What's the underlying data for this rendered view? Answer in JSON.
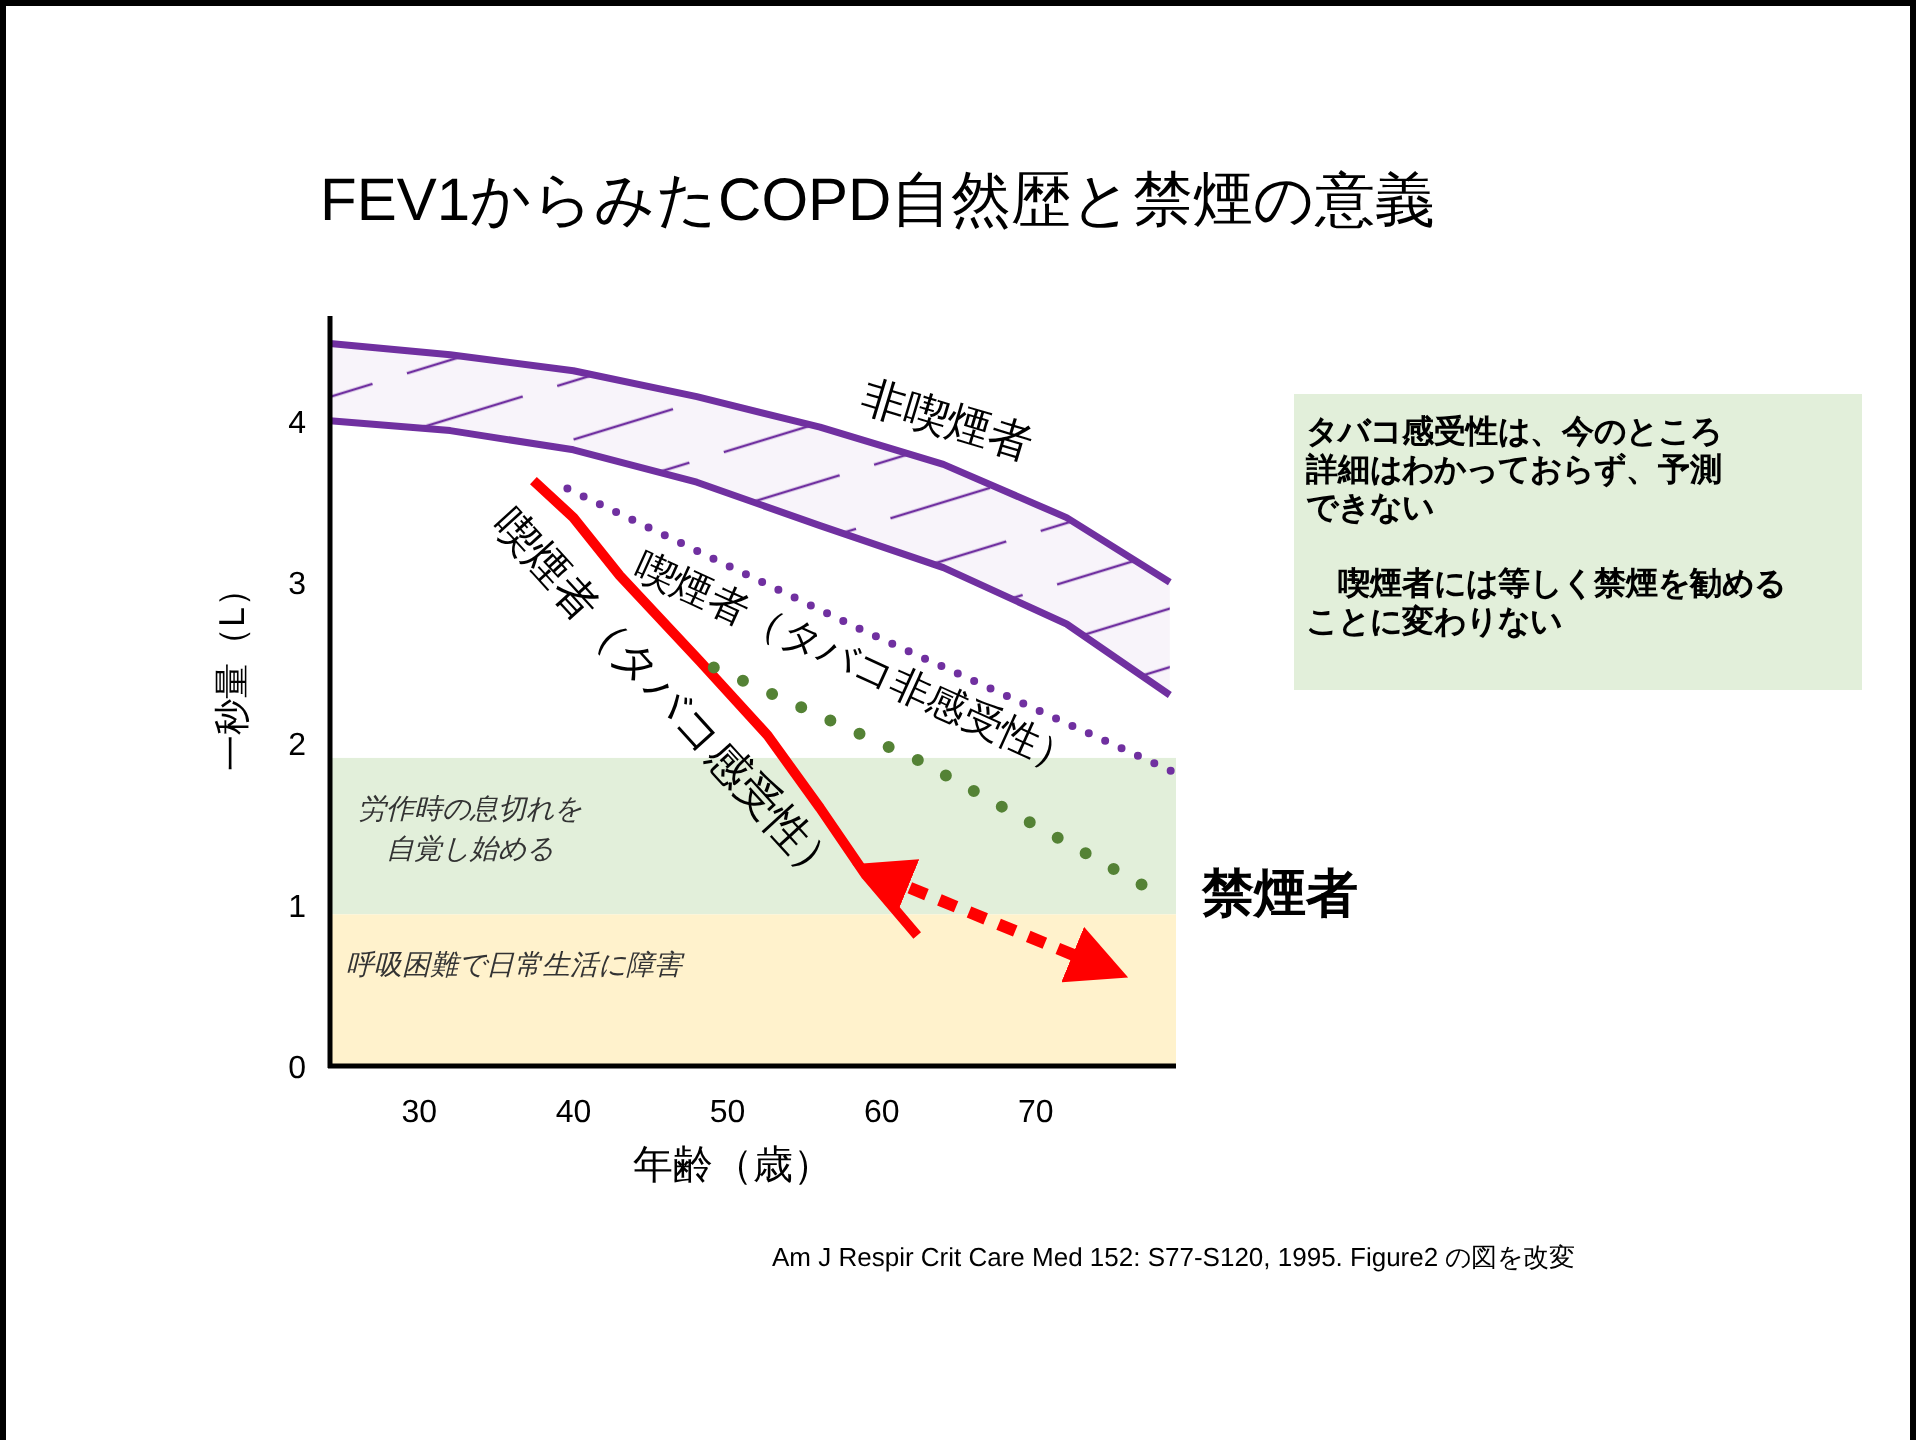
{
  "chart_data": {
    "type": "line",
    "title": "FEV1からみたCOPD自然歴と禁煙の意義",
    "xlabel": "年齢（歳）",
    "ylabel": "一秒量（L）",
    "xlim": [
      24.2,
      79.1
    ],
    "ylim": [
      0,
      4.65
    ],
    "xticks": [
      30,
      40,
      50,
      60,
      70
    ],
    "yticks": [
      0,
      1,
      2,
      3,
      4
    ],
    "grid": false,
    "legend": false,
    "series": [
      {
        "name": "非喫煙者",
        "type": "line",
        "color": "#7030a0",
        "line_style": "solid",
        "x": [
          24.2,
          32,
          40,
          48,
          56,
          64,
          72,
          78.7
        ],
        "values": [
          4.48,
          4.41,
          4.31,
          4.15,
          3.96,
          3.73,
          3.4,
          3.0
        ],
        "lower": [
          4.0,
          3.94,
          3.82,
          3.62,
          3.35,
          3.09,
          2.74,
          2.3
        ],
        "upper": [
          4.48,
          4.41,
          4.31,
          4.15,
          3.96,
          3.73,
          3.4,
          3.0
        ]
      },
      {
        "color": "#7030a0",
        "line_style": "solid",
        "x": [
          24.2,
          32,
          40,
          48,
          56,
          64,
          72,
          78.7
        ],
        "values": [
          4.0,
          3.94,
          3.82,
          3.62,
          3.35,
          3.09,
          2.74,
          2.3
        ]
      },
      {
        "name": "喫煙者（タバコ感受性）",
        "type": "line",
        "color": "#ff0000",
        "line_style": "solid",
        "x": [
          37.4,
          40.0,
          43.0,
          48.2,
          52.6,
          56.0,
          59.0,
          62.3
        ],
        "values": [
          3.63,
          3.4,
          3.04,
          2.51,
          2.05,
          1.6,
          1.18,
          0.81
        ]
      },
      {
        "name": "喫煙者（タバコ非感受性）",
        "type": "line",
        "color": "#7030a0",
        "line_style": "dotted",
        "x": [
          39.6,
          58.6,
          79.0
        ],
        "values": [
          3.58,
          2.71,
          1.82
        ]
      },
      {
        "name": "禁煙者",
        "type": "line",
        "color": "#548235",
        "line_style": "dotted",
        "x": [
          49.1,
          62.5,
          77.9
        ],
        "values": [
          2.47,
          1.89,
          1.07
        ]
      },
      {
        "type": "line",
        "color": "#ff0000",
        "line_style": "dashed",
        "x": [
          59.9,
          74.2
        ],
        "values": [
          1.18,
          0.62
        ]
      }
    ],
    "bands": [
      {
        "axis": "y",
        "from": 0.94,
        "to": 1.91,
        "label": "労作時の息切れを自覚し始める",
        "color": "#e2efda"
      },
      {
        "axis": "y",
        "from": 0,
        "to": 0.94,
        "label": "呼吸困難で日常生活に障害",
        "color": "#fff2cc"
      }
    ],
    "annotations": [
      "タバコ感受性は、今のところ詳細はわかっておらず、予測できない",
      "喫煙者には等しく禁煙を勧めることに変わりない",
      "Am J Respir Crit Care Med  152: S77-S120, 1995.  Figure2 の図を改変"
    ]
  }
}
